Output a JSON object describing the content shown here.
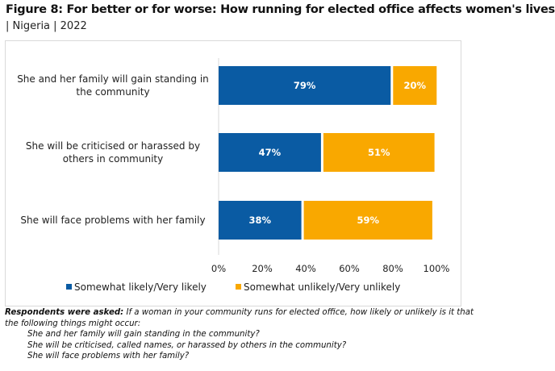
{
  "title": "Figure 8: For better or for worse: How running for elected office affects women's lives",
  "subtitle": "| Nigeria | 2022",
  "colors": {
    "likely": "#0a5ba3",
    "unlikely": "#f9a800"
  },
  "chart_data": {
    "type": "bar",
    "orientation": "horizontal-stacked",
    "categories": [
      [
        "She and her family will gain standing in",
        "the community"
      ],
      [
        "She will be criticised or harassed by",
        "others in community"
      ],
      [
        "She will face problems with her family"
      ]
    ],
    "series": [
      {
        "name": "Somewhat likely/Very likely",
        "values": [
          79,
          47,
          38
        ],
        "labels": [
          "79%",
          "47%",
          "38%"
        ]
      },
      {
        "name": "Somewhat unlikely/Very unlikely",
        "values": [
          20,
          51,
          59
        ],
        "labels": [
          "20%",
          "51%",
          "59%"
        ]
      }
    ],
    "xlim": [
      0,
      100
    ],
    "xticks": [
      "0%",
      "20%",
      "40%",
      "60%",
      "80%",
      "100%"
    ],
    "grid": false,
    "legend": "bottom"
  },
  "note": {
    "lead": "Respondents were asked:",
    "text": "If a woman in your community runs for elected office, how likely or unlikely is it that the following things might occur:",
    "questions": [
      "She and her family will gain standing in the community?",
      "She will be criticised, called names, or harassed by others in the community?",
      "She will face problems with her family?"
    ]
  }
}
